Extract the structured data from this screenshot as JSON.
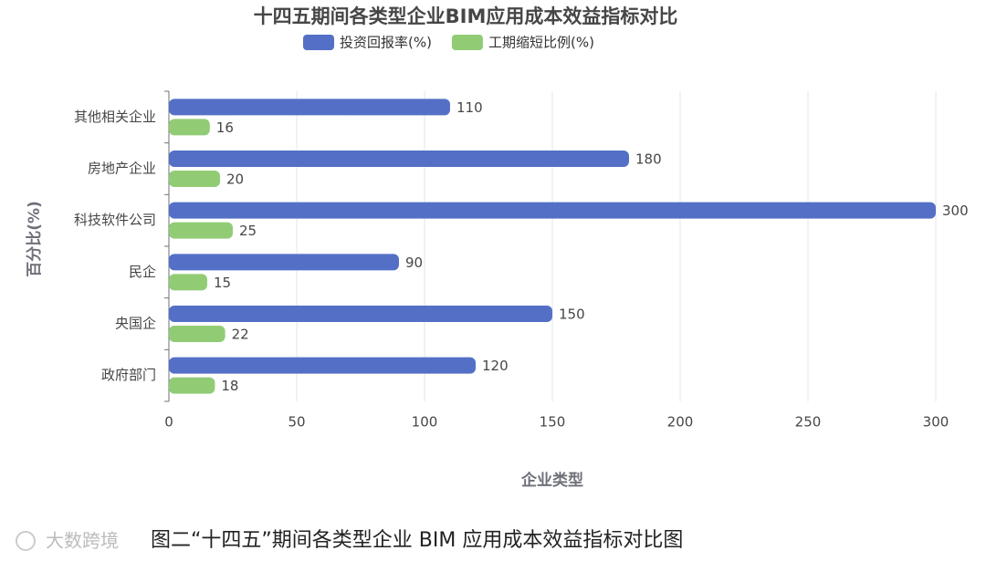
{
  "chart_data": {
    "type": "hbar",
    "title": "十四五期间各类型企业BIM应用成本效益指标对比",
    "categories": [
      "其他相关企业",
      "房地产企业",
      "科技软件公司",
      "民企",
      "央国企",
      "政府部门"
    ],
    "series": [
      {
        "name": "投资回报率(%)",
        "color": "#5470c6",
        "values": [
          110,
          180,
          300,
          90,
          150,
          120
        ]
      },
      {
        "name": "工期缩短比例(%)",
        "color": "#91cc75",
        "values": [
          16,
          20,
          25,
          15,
          22,
          18
        ]
      }
    ],
    "xlim": [
      0,
      300
    ],
    "xticks": [
      0,
      50,
      100,
      150,
      200,
      250,
      300
    ],
    "x_label": "企业类型",
    "y_label": "百分比(%)",
    "grid": true,
    "legend": "top"
  },
  "caption": "图二“十四五”期间各类型企业 BIM 应用成本效益指标对比图",
  "watermark": "大数跨境"
}
